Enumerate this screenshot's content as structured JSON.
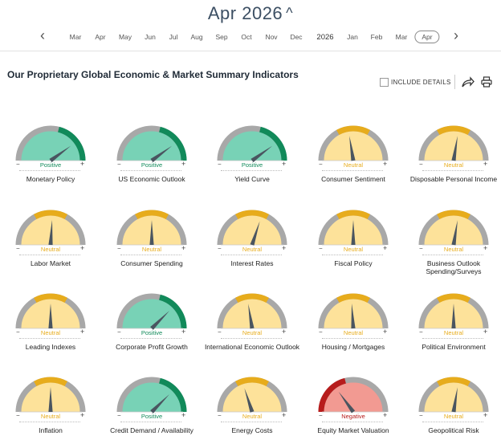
{
  "header": {
    "month_year": "Apr 2026"
  },
  "timeline": {
    "months": [
      "Mar",
      "Apr",
      "May",
      "Jun",
      "Jul",
      "Aug",
      "Sep",
      "Oct",
      "Nov",
      "Dec",
      "2026",
      "Jan",
      "Feb",
      "Mar",
      "Apr"
    ],
    "selected": "Apr"
  },
  "section": {
    "title": "Our Proprietary Global Economic & Market Summary Indicators",
    "include_details": "INCLUDE DETAILS"
  },
  "colors": {
    "positive_fill": "#78d2b6",
    "positive_accent": "#118a5a",
    "neutral_fill": "#fde29a",
    "neutral_accent": "#e7ac1c",
    "negative_fill": "#f29a92",
    "negative_accent": "#b71c1c",
    "rim": "#a8a8a8",
    "needle": "#4a5560"
  },
  "gauges": [
    {
      "label": "Monetary Policy",
      "status": "Positive",
      "level": 0.8
    },
    {
      "label": "US Economic Outlook",
      "status": "Positive",
      "level": 0.8
    },
    {
      "label": "Yield Curve",
      "status": "Positive",
      "level": 0.8
    },
    {
      "label": "Consumer Sentiment",
      "status": "Neutral",
      "level": 0.45
    },
    {
      "label": "Disposable Personal Income",
      "status": "Neutral",
      "level": 0.55
    },
    {
      "label": "Labor Market",
      "status": "Neutral",
      "level": 0.52
    },
    {
      "label": "Consumer Spending",
      "status": "Neutral",
      "level": 0.5
    },
    {
      "label": "Interest Rates",
      "status": "Neutral",
      "level": 0.6
    },
    {
      "label": "Fiscal Policy",
      "status": "Neutral",
      "level": 0.5
    },
    {
      "label": "Business Outlook Spending/Surveys",
      "status": "Neutral",
      "level": 0.55
    },
    {
      "label": "Leading Indexes",
      "status": "Neutral",
      "level": 0.5
    },
    {
      "label": "Corporate Profit Growth",
      "status": "Positive",
      "level": 0.75
    },
    {
      "label": "International Economic Outlook",
      "status": "Neutral",
      "level": 0.45
    },
    {
      "label": "Housing / Mortgages",
      "status": "Neutral",
      "level": 0.48
    },
    {
      "label": "Political Environment",
      "status": "Neutral",
      "level": 0.5
    },
    {
      "label": "Inflation",
      "status": "Neutral",
      "level": 0.5
    },
    {
      "label": "Credit Demand / Availability",
      "status": "Positive",
      "level": 0.75
    },
    {
      "label": "Energy Costs",
      "status": "Neutral",
      "level": 0.4
    },
    {
      "label": "Equity Market Valuation",
      "status": "Negative",
      "level": 0.3
    },
    {
      "label": "Geopolitical Risk",
      "status": "Neutral",
      "level": 0.55
    }
  ],
  "scale": {
    "minus": "−",
    "plus": "+"
  }
}
